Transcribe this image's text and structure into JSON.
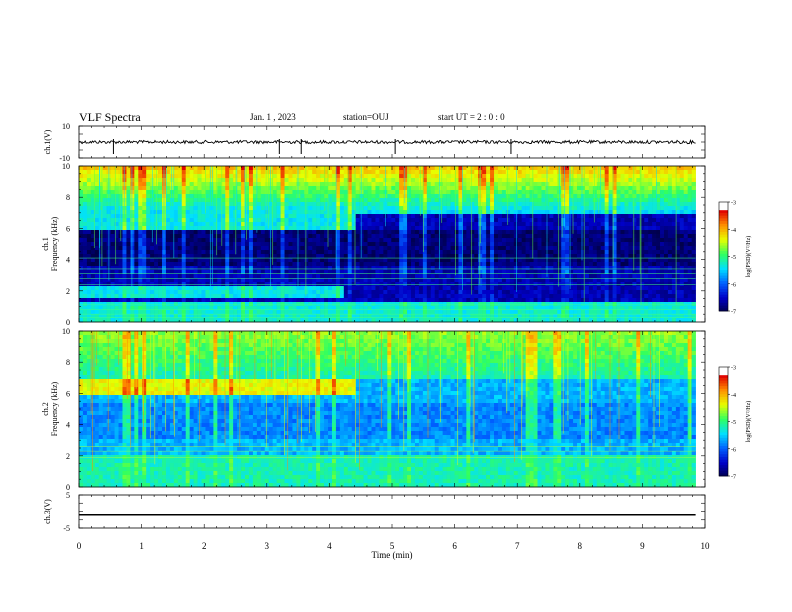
{
  "header": {
    "title": "VLF Spectra",
    "date": "Jan. 1 , 2023",
    "station": "station=OUJ",
    "start": "start UT =  2 : 0  : 0"
  },
  "chart_data": [
    {
      "type": "line",
      "name": "ch1-waveform",
      "ylabel": "ch.1(V)",
      "ylim": [
        -10,
        10
      ],
      "ytick_labels": [
        "10",
        "-10"
      ],
      "xlim": [
        0,
        10
      ],
      "baseline": 0,
      "spikes_min": [
        0.55,
        3.2,
        3.55,
        5.05,
        6.9
      ]
    },
    {
      "type": "heatmap",
      "name": "ch1-spectrogram",
      "ylabel": "ch.1 Frequency (kHz)",
      "ylim": [
        0,
        10
      ],
      "ytick_labels": [
        "0",
        "2",
        "4",
        "6",
        "8",
        "10"
      ],
      "xlim": [
        0,
        9.85
      ],
      "bands_khz": [
        [
          5.8,
          7.2,
          "until 4.4 min"
        ],
        [
          1.6,
          2.2,
          "until 4.2 min"
        ]
      ],
      "colorbar": {
        "label": "log(PSD)(V²/Hz)",
        "range": [
          -7,
          -3
        ],
        "ticks": [
          "-3",
          "-4",
          "-5",
          "-6",
          "-7"
        ]
      }
    },
    {
      "type": "heatmap",
      "name": "ch2-spectrogram",
      "ylabel": "ch.2 Frequency (kHz)",
      "ylim": [
        0,
        10
      ],
      "ytick_labels": [
        "0",
        "2",
        "4",
        "6",
        "8",
        "10"
      ],
      "xlim": [
        0,
        9.85
      ],
      "bands_khz": [
        [
          6.0,
          6.9,
          "until 4.4 min"
        ]
      ],
      "colorbar": {
        "label": "log(PSD)(V²/Hz)",
        "range": [
          -7,
          -3
        ],
        "ticks": [
          "-3",
          "-4",
          "-5",
          "-6",
          "-7"
        ]
      }
    },
    {
      "type": "line",
      "name": "ch3-waveform",
      "ylabel": "ch.3(V)",
      "ylim": [
        -5,
        5
      ],
      "ytick_labels": [
        "5",
        "-5"
      ],
      "xlim": [
        0,
        10
      ],
      "values": [
        -1,
        -1
      ]
    }
  ],
  "x_axis": {
    "label": "Time (min)",
    "ticks": [
      "0",
      "1",
      "2",
      "3",
      "4",
      "5",
      "6",
      "7",
      "8",
      "9",
      "10"
    ]
  },
  "colors": {
    "colormap": [
      "#00004a",
      "#0000c8",
      "#0060ff",
      "#00e0ff",
      "#30ff60",
      "#e8ff00",
      "#ff9000",
      "#e00000",
      "#ffffff"
    ]
  }
}
